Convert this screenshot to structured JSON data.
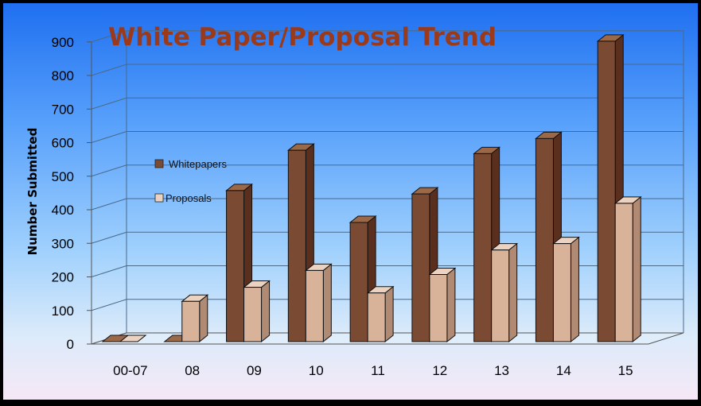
{
  "chart_data": {
    "type": "bar",
    "title": "White Paper/Proposal Trend",
    "xlabel": "",
    "ylabel": "Number Submitted",
    "categories": [
      "00-07",
      "08",
      "09",
      "10",
      "11",
      "12",
      "13",
      "14",
      "15"
    ],
    "series": [
      {
        "name": "Whitepapers",
        "values": [
          0,
          0,
          450,
          570,
          355,
          440,
          560,
          605,
          895
        ]
      },
      {
        "name": "Proposals",
        "values": [
          0,
          120,
          162,
          212,
          145,
          200,
          273,
          292,
          412
        ]
      }
    ],
    "ylim": [
      0,
      900
    ],
    "yticks": [
      0,
      100,
      200,
      300,
      400,
      500,
      600,
      700,
      800,
      900
    ],
    "grid": true,
    "legend_position": "left",
    "colors": {
      "whitepapers_front": "#7b4a33",
      "whitepapers_side": "#5a2f1e",
      "whitepapers_top": "#9b6848",
      "proposals_front": "#d9b29a",
      "proposals_side": "#b08a73",
      "proposals_top": "#ecd3c1",
      "title": "#9a3a1a"
    }
  }
}
